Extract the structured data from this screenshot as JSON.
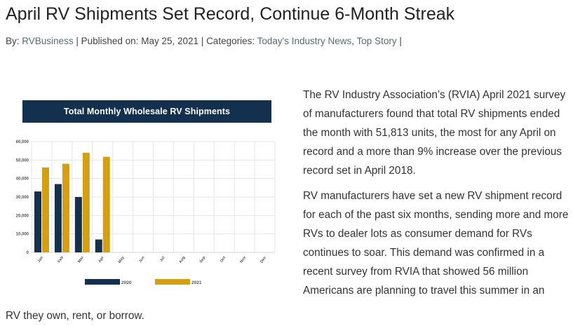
{
  "article": {
    "title": "April RV Shipments Set Record, Continue 6-Month Streak",
    "meta": {
      "by_label": "By:",
      "author": "RVBusiness",
      "sep1": "|",
      "published_label": "Published on:",
      "date": "May 25, 2021",
      "sep2": "|",
      "categories_label": "Categories:",
      "category_1": "Today's Industry News",
      "comma": ",",
      "category_2": "Top Story",
      "sep3": "|"
    },
    "paragraph_1": "The RV Industry Association’s (RVIA) April 2021 survey of manufacturers found that total RV shipments ended the month with 51,813 units, the most for any April on record and a more than 9% increase over the previous record set in April 2018.",
    "paragraph_2": "RV manufacturers have set a new RV shipment record for each of the past six months, sending more and more RVs to dealer lots as consumer demand for RVs continues to soar. This demand was confirmed in a recent survey from RVIA that showed 56 million Americans are planning to travel this summer in an",
    "paragraph_2_tail": "RV they own, rent, or borrow."
  },
  "chart_data": {
    "type": "bar",
    "title": "Total Monthly Wholesale RV Shipments",
    "categories": [
      "Jan",
      "Feb",
      "Mar",
      "Apr",
      "May",
      "Jun",
      "Jul",
      "Aug",
      "Sep",
      "Oct",
      "Nov",
      "Dec"
    ],
    "series": [
      {
        "name": "2020",
        "color": "#14304f",
        "values": [
          33000,
          37000,
          30000,
          7000,
          null,
          null,
          null,
          null,
          null,
          null,
          null,
          null
        ]
      },
      {
        "name": "2021",
        "color": "#d4a012",
        "values": [
          46000,
          48000,
          54000,
          51813,
          null,
          null,
          null,
          null,
          null,
          null,
          null,
          null
        ]
      }
    ],
    "yticks": [
      "0",
      "10,000",
      "20,000",
      "30,000",
      "40,000",
      "50,000",
      "60,000"
    ],
    "ylim": [
      0,
      60000
    ],
    "grid": true,
    "legend": "bottom"
  }
}
